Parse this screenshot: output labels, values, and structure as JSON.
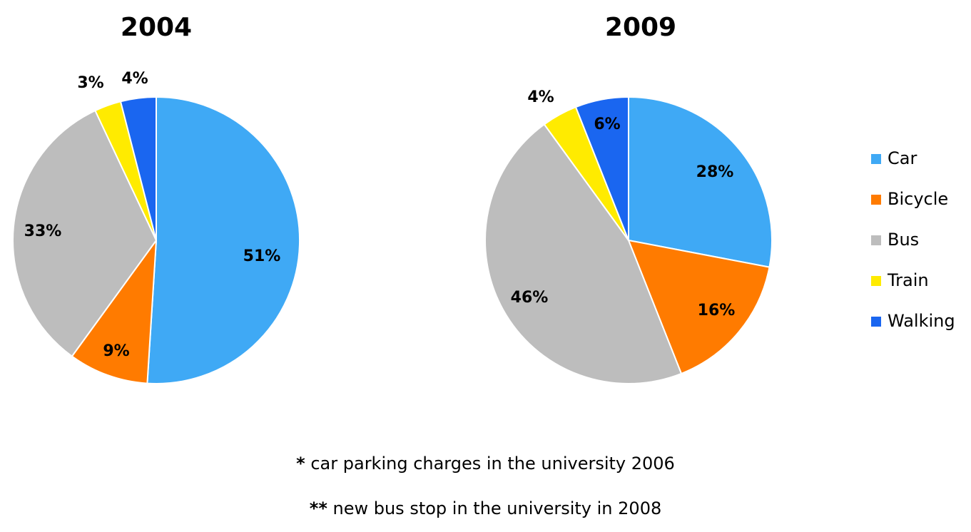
{
  "colors": {
    "Car": "#3fa9f5",
    "Bicycle": "#ff7b00",
    "Bus": "#bdbdbd",
    "Train": "#ffeb00",
    "Walking": "#1a66f0"
  },
  "chart_data": [
    {
      "type": "pie",
      "title": "2004",
      "categories": [
        "Car",
        "Bicycle",
        "Bus",
        "Train",
        "Walking"
      ],
      "values": [
        51,
        9,
        33,
        3,
        4
      ],
      "labels": [
        "51%",
        "9%",
        "33%",
        "3%",
        "4%"
      ],
      "start": "12 o'clock, clockwise"
    },
    {
      "type": "pie",
      "title": "2009",
      "categories": [
        "Car",
        "Bicycle",
        "Bus",
        "Train",
        "Walking"
      ],
      "values": [
        28,
        16,
        46,
        4,
        6
      ],
      "labels": [
        "28%",
        "16%",
        "46%",
        "4%",
        "6%"
      ],
      "start": "12 o'clock, clockwise"
    }
  ],
  "legend": {
    "placement": "right",
    "items": [
      "Car",
      "Bicycle",
      "Bus",
      "Train",
      "Walking"
    ]
  },
  "notes": [
    {
      "marker": "*",
      "text": " car parking charges in the university 2006"
    },
    {
      "marker": "**",
      "text": " new bus stop in the university in 2008"
    }
  ]
}
